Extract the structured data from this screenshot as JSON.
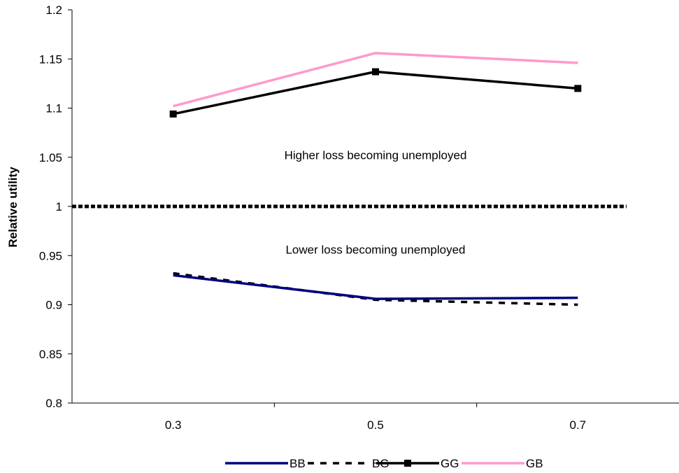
{
  "chart_data": {
    "type": "line",
    "title": "",
    "xlabel": "",
    "ylabel": "Relative utility",
    "categories": [
      "0.3",
      "0.5",
      "0.7"
    ],
    "ylim": [
      0.8,
      1.2
    ],
    "yticks": [
      "0.8",
      "0.85",
      "0.9",
      "0.95",
      "1",
      "1.05",
      "1.1",
      "1.15",
      "1.2"
    ],
    "grid": false,
    "legend_position": "bottom",
    "series": [
      {
        "name": "BB",
        "values": [
          0.93,
          0.906,
          0.907
        ],
        "color": "#000080",
        "style": "solid",
        "marker": "none"
      },
      {
        "name": "BG",
        "values": [
          0.932,
          0.905,
          0.9
        ],
        "color": "#000000",
        "style": "dashed",
        "marker": "none"
      },
      {
        "name": "GG",
        "values": [
          1.094,
          1.137,
          1.12
        ],
        "color": "#000000",
        "style": "solid",
        "marker": "square"
      },
      {
        "name": "GB",
        "values": [
          1.102,
          1.156,
          1.146
        ],
        "color": "#ff99cc",
        "style": "solid",
        "marker": "none"
      }
    ],
    "reference_line": {
      "value": 1,
      "color": "#000000",
      "style": "dotted"
    },
    "annotations": [
      {
        "text": "Higher loss becoming unemployed",
        "x": "0.5",
        "y": 1.048
      },
      {
        "text": "Lower loss becoming unemployed",
        "x": "0.5",
        "y": 0.952
      }
    ]
  }
}
